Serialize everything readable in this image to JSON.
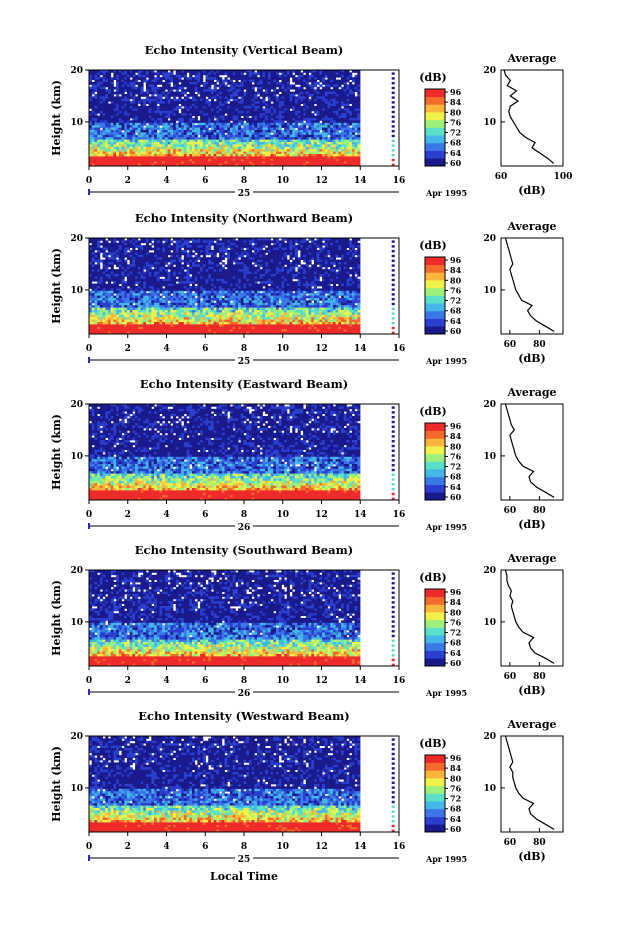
{
  "chart_data": [
    {
      "type": "heatmap",
      "title": "Echo Intensity (Vertical Beam)",
      "ylabel": "Height (km)",
      "x_ticks": [
        "0",
        "2",
        "4",
        "6",
        "8",
        "10",
        "12",
        "14",
        "16"
      ],
      "x_range": [
        0,
        16
      ],
      "data_end_hour": 14,
      "y_ticks": [
        "10",
        "20"
      ],
      "y_range": [
        1.5,
        20
      ],
      "date_label": "25",
      "month_label": "Apr 1995",
      "colorbar": {
        "title": "(dB)",
        "ticks": [
          "96",
          "84",
          "80",
          "76",
          "72",
          "68",
          "64",
          "60"
        ],
        "range": [
          60,
          96
        ]
      },
      "profile": {
        "title": "Average",
        "xlabel": "(dB)",
        "x_ticks": [
          "60",
          "100"
        ],
        "x_range": [
          60,
          100
        ],
        "y_ticks": [
          "10",
          "20"
        ],
        "heights": [
          2,
          3,
          4,
          5,
          6,
          7,
          8,
          9,
          10,
          11,
          12,
          13,
          14,
          15,
          16,
          17,
          18,
          19,
          20
        ],
        "values": [
          94,
          90,
          85,
          80,
          82,
          76,
          72,
          70,
          68,
          66,
          65,
          66,
          71,
          66,
          70,
          64,
          66,
          63,
          62
        ]
      }
    },
    {
      "type": "heatmap",
      "title": "Echo Intensity (Northward Beam)",
      "ylabel": "Height (km)",
      "x_ticks": [
        "0",
        "2",
        "4",
        "6",
        "8",
        "10",
        "12",
        "14",
        "16"
      ],
      "x_range": [
        0,
        16
      ],
      "data_end_hour": 14,
      "y_ticks": [
        "10",
        "20"
      ],
      "y_range": [
        1.5,
        20
      ],
      "date_label": "25",
      "month_label": "Apr 1995",
      "colorbar": {
        "title": "(dB)",
        "ticks": [
          "96",
          "84",
          "80",
          "76",
          "72",
          "68",
          "64",
          "60"
        ],
        "range": [
          60,
          96
        ]
      },
      "profile": {
        "title": "Average",
        "xlabel": "(dB)",
        "x_ticks": [
          "60",
          "80"
        ],
        "x_range": [
          54,
          96
        ],
        "y_ticks": [
          "10",
          "20"
        ],
        "heights": [
          2,
          3,
          4,
          5,
          6,
          7,
          8,
          9,
          10,
          11,
          12,
          13,
          14,
          15,
          16,
          17,
          18,
          19,
          20
        ],
        "values": [
          90,
          84,
          78,
          74,
          72,
          75,
          68,
          66,
          64,
          63,
          62,
          61,
          60,
          62,
          61,
          60,
          59,
          58,
          57
        ]
      }
    },
    {
      "type": "heatmap",
      "title": "Echo Intensity (Eastward Beam)",
      "ylabel": "Height (km)",
      "x_ticks": [
        "0",
        "2",
        "4",
        "6",
        "8",
        "10",
        "12",
        "14",
        "16"
      ],
      "x_range": [
        0,
        16
      ],
      "data_end_hour": 14,
      "y_ticks": [
        "10",
        "20"
      ],
      "y_range": [
        1.5,
        20
      ],
      "date_label": "26",
      "month_label": "Apr 1995",
      "colorbar": {
        "title": "(dB)",
        "ticks": [
          "96",
          "84",
          "80",
          "76",
          "72",
          "68",
          "64",
          "60"
        ],
        "range": [
          60,
          96
        ]
      },
      "profile": {
        "title": "Average",
        "xlabel": "(dB)",
        "x_ticks": [
          "60",
          "80"
        ],
        "x_range": [
          54,
          96
        ],
        "y_ticks": [
          "10",
          "20"
        ],
        "heights": [
          2,
          3,
          4,
          5,
          6,
          7,
          8,
          9,
          10,
          11,
          12,
          13,
          14,
          15,
          16,
          17,
          18,
          19,
          20
        ],
        "values": [
          90,
          84,
          78,
          74,
          73,
          76,
          69,
          66,
          64,
          63,
          62,
          61,
          60,
          63,
          61,
          60,
          59,
          58,
          57
        ]
      }
    },
    {
      "type": "heatmap",
      "title": "Echo Intensity (Southward Beam)",
      "ylabel": "Height (km)",
      "x_ticks": [
        "0",
        "2",
        "4",
        "6",
        "8",
        "10",
        "12",
        "14",
        "16"
      ],
      "x_range": [
        0,
        16
      ],
      "data_end_hour": 14,
      "y_ticks": [
        "10",
        "20"
      ],
      "y_range": [
        1.5,
        20
      ],
      "date_label": "26",
      "month_label": "Apr 1995",
      "colorbar": {
        "title": "(dB)",
        "ticks": [
          "96",
          "84",
          "80",
          "76",
          "72",
          "68",
          "64",
          "60"
        ],
        "range": [
          60,
          96
        ]
      },
      "profile": {
        "title": "Average",
        "xlabel": "(dB)",
        "x_ticks": [
          "60",
          "80"
        ],
        "x_range": [
          54,
          96
        ],
        "y_ticks": [
          "10",
          "20"
        ],
        "heights": [
          2,
          3,
          4,
          5,
          6,
          7,
          8,
          9,
          10,
          11,
          12,
          13,
          14,
          15,
          16,
          17,
          18,
          19,
          20
        ],
        "values": [
          90,
          84,
          77,
          74,
          73,
          76,
          69,
          66,
          64,
          63,
          62,
          61,
          62,
          60,
          61,
          59,
          58,
          58,
          57
        ]
      }
    },
    {
      "type": "heatmap",
      "title": "Echo Intensity (Westward Beam)",
      "ylabel": "Height (km)",
      "x_ticks": [
        "0",
        "2",
        "4",
        "6",
        "8",
        "10",
        "12",
        "14",
        "16"
      ],
      "x_range": [
        0,
        16
      ],
      "data_end_hour": 14,
      "y_ticks": [
        "10",
        "20"
      ],
      "y_range": [
        1.5,
        20
      ],
      "date_label": "25",
      "month_label": "Apr 1995",
      "colorbar": {
        "title": "(dB)",
        "ticks": [
          "96",
          "84",
          "80",
          "76",
          "72",
          "68",
          "64",
          "60"
        ],
        "range": [
          60,
          96
        ]
      },
      "profile": {
        "title": "Average",
        "xlabel": "(dB)",
        "x_ticks": [
          "60",
          "80"
        ],
        "x_range": [
          54,
          96
        ],
        "y_ticks": [
          "10",
          "20"
        ],
        "heights": [
          2,
          3,
          4,
          5,
          6,
          7,
          8,
          9,
          10,
          11,
          12,
          13,
          14,
          15,
          16,
          17,
          18,
          19,
          20
        ],
        "values": [
          90,
          84,
          78,
          74,
          73,
          76,
          69,
          66,
          64,
          63,
          62,
          62,
          60,
          62,
          61,
          60,
          59,
          58,
          57
        ]
      }
    }
  ],
  "figure": {
    "xlabel": "Local Time"
  },
  "colors": {
    "colormap": [
      "#1a1a8c",
      "#2a3fd0",
      "#3a78e8",
      "#45b6e8",
      "#58e0c8",
      "#9ef07a",
      "#eef24a",
      "#fbb53a",
      "#f46a2a",
      "#ef2a2a"
    ],
    "profile_line": "#000000",
    "date_marker": "#2a2acc"
  }
}
